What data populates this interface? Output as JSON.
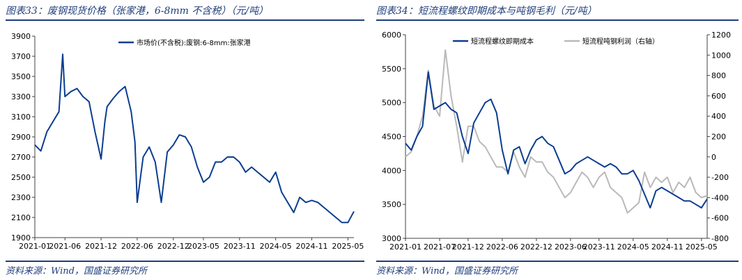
{
  "charts": [
    {
      "title": "图表33：废钢现货价格（张家港，6-8mm 不含税）（元/吨）",
      "source": "资料来源：Wind，国盛证券研究所",
      "legend": [
        {
          "label": "市场价(不含税):废钢:6-8mm:张家港",
          "color": "#0b3d91"
        }
      ],
      "y_ticks": [
        "3900",
        "3700",
        "3500",
        "3300",
        "3100",
        "2900",
        "2700",
        "2500",
        "2300",
        "2100",
        "1900"
      ],
      "x_ticks": [
        "2021-01",
        "2021-06",
        "2021-12",
        "2022-06",
        "2022-12",
        "2023-05",
        "2023-11",
        "2024-05",
        "2024-11",
        "2025-05"
      ]
    },
    {
      "title": "图表34：短流程螺纹即期成本与吨钢毛利（元/吨）",
      "source": "资料来源：Wind，国盛证券研究所",
      "legend": [
        {
          "label": "短流程螺纹即期成本",
          "color": "#0b3d91"
        },
        {
          "label": "短流程吨钢利润（右轴）",
          "color": "#b9b9b9"
        }
      ],
      "y_ticks": [
        "6000",
        "5500",
        "5000",
        "4500",
        "4000",
        "3500",
        "3000"
      ],
      "y2_ticks": [
        "1200",
        "1000",
        "800",
        "600",
        "400",
        "200",
        "0",
        "-200",
        "-400",
        "-600",
        "-800"
      ],
      "x_ticks": [
        "2021-01",
        "2021-07",
        "2021-12",
        "2022-06",
        "2022-12",
        "2023-06",
        "2023-11",
        "2024-05",
        "2024-11",
        "2025-05"
      ]
    }
  ],
  "chart_data": [
    {
      "type": "line",
      "title": "图表33：废钢现货价格（张家港，6-8mm 不含税）（元/吨）",
      "xlabel": "",
      "ylabel": "",
      "ylim": [
        1900,
        3900
      ],
      "x_range": [
        "2021-01",
        "2025-06"
      ],
      "grid": false,
      "legend_position": "top",
      "series": [
        {
          "name": "市场价(不含税):废钢:6-8mm:张家港",
          "color": "#0b3d91",
          "points": [
            [
              "2021-01",
              2820
            ],
            [
              "2021-02",
              2760
            ],
            [
              "2021-03",
              2950
            ],
            [
              "2021-04",
              3050
            ],
            [
              "2021-05",
              3150
            ],
            [
              "2021-05-20",
              3720
            ],
            [
              "2021-06",
              3300
            ],
            [
              "2021-07",
              3350
            ],
            [
              "2021-08",
              3380
            ],
            [
              "2021-09",
              3300
            ],
            [
              "2021-10",
              3250
            ],
            [
              "2021-11",
              2950
            ],
            [
              "2021-12",
              2680
            ],
            [
              "2021-12-20",
              3050
            ],
            [
              "2022-01",
              3200
            ],
            [
              "2022-02",
              3280
            ],
            [
              "2022-03",
              3350
            ],
            [
              "2022-04",
              3400
            ],
            [
              "2022-05",
              3150
            ],
            [
              "2022-05-20",
              2850
            ],
            [
              "2022-06",
              2250
            ],
            [
              "2022-07",
              2700
            ],
            [
              "2022-08",
              2800
            ],
            [
              "2022-09",
              2650
            ],
            [
              "2022-10",
              2250
            ],
            [
              "2022-11",
              2750
            ],
            [
              "2022-12",
              2820
            ],
            [
              "2023-01",
              2920
            ],
            [
              "2023-02",
              2900
            ],
            [
              "2023-03",
              2800
            ],
            [
              "2023-04",
              2600
            ],
            [
              "2023-05",
              2450
            ],
            [
              "2023-06",
              2500
            ],
            [
              "2023-07",
              2650
            ],
            [
              "2023-08",
              2650
            ],
            [
              "2023-09",
              2700
            ],
            [
              "2023-10",
              2700
            ],
            [
              "2023-11",
              2650
            ],
            [
              "2023-12",
              2550
            ],
            [
              "2024-01",
              2600
            ],
            [
              "2024-02",
              2550
            ],
            [
              "2024-03",
              2500
            ],
            [
              "2024-04",
              2450
            ],
            [
              "2024-05",
              2550
            ],
            [
              "2024-06",
              2350
            ],
            [
              "2024-07",
              2250
            ],
            [
              "2024-08",
              2150
            ],
            [
              "2024-09",
              2300
            ],
            [
              "2024-10",
              2250
            ],
            [
              "2024-11",
              2270
            ],
            [
              "2024-12",
              2250
            ],
            [
              "2025-01",
              2200
            ],
            [
              "2025-02",
              2150
            ],
            [
              "2025-03",
              2100
            ],
            [
              "2025-04",
              2050
            ],
            [
              "2025-05",
              2050
            ],
            [
              "2025-06",
              2160
            ]
          ]
        }
      ]
    },
    {
      "type": "line",
      "title": "图表34：短流程螺纹即期成本与吨钢毛利（元/吨）",
      "xlabel": "",
      "ylabel": "",
      "ylim": [
        3000,
        6000
      ],
      "y2lim": [
        -800,
        1200
      ],
      "x_range": [
        "2021-01",
        "2025-06"
      ],
      "grid": false,
      "legend_position": "top",
      "series": [
        {
          "name": "短流程螺纹即期成本",
          "axis": "left",
          "color": "#0b3d91",
          "points": [
            [
              "2021-01",
              4400
            ],
            [
              "2021-02",
              4300
            ],
            [
              "2021-03",
              4500
            ],
            [
              "2021-04",
              4650
            ],
            [
              "2021-05",
              5450
            ],
            [
              "2021-06",
              4900
            ],
            [
              "2021-07",
              4950
            ],
            [
              "2021-08",
              5000
            ],
            [
              "2021-09",
              4900
            ],
            [
              "2021-10",
              4850
            ],
            [
              "2021-11",
              4500
            ],
            [
              "2021-12",
              4250
            ],
            [
              "2022-01",
              4700
            ],
            [
              "2022-02",
              4850
            ],
            [
              "2022-03",
              5000
            ],
            [
              "2022-04",
              5050
            ],
            [
              "2022-05",
              4850
            ],
            [
              "2022-06",
              4300
            ],
            [
              "2022-07",
              3950
            ],
            [
              "2022-08",
              4300
            ],
            [
              "2022-09",
              4350
            ],
            [
              "2022-10",
              4100
            ],
            [
              "2022-11",
              4300
            ],
            [
              "2022-12",
              4450
            ],
            [
              "2023-01",
              4500
            ],
            [
              "2023-02",
              4400
            ],
            [
              "2023-03",
              4350
            ],
            [
              "2023-04",
              4150
            ],
            [
              "2023-05",
              3950
            ],
            [
              "2023-06",
              4000
            ],
            [
              "2023-07",
              4100
            ],
            [
              "2023-08",
              4150
            ],
            [
              "2023-09",
              4200
            ],
            [
              "2023-10",
              4150
            ],
            [
              "2023-11",
              4100
            ],
            [
              "2023-12",
              4050
            ],
            [
              "2024-01",
              4100
            ],
            [
              "2024-02",
              4050
            ],
            [
              "2024-03",
              3950
            ],
            [
              "2024-04",
              3950
            ],
            [
              "2024-05",
              4000
            ],
            [
              "2024-06",
              3850
            ],
            [
              "2024-07",
              3650
            ],
            [
              "2024-08",
              3450
            ],
            [
              "2024-09",
              3700
            ],
            [
              "2024-10",
              3750
            ],
            [
              "2024-11",
              3700
            ],
            [
              "2024-12",
              3650
            ],
            [
              "2025-01",
              3600
            ],
            [
              "2025-02",
              3550
            ],
            [
              "2025-03",
              3550
            ],
            [
              "2025-04",
              3500
            ],
            [
              "2025-05",
              3450
            ],
            [
              "2025-06",
              3580
            ]
          ]
        },
        {
          "name": "短流程吨钢利润（右轴）",
          "axis": "right",
          "color": "#b9b9b9",
          "points": [
            [
              "2021-01",
              0
            ],
            [
              "2021-02",
              50
            ],
            [
              "2021-03",
              200
            ],
            [
              "2021-04",
              400
            ],
            [
              "2021-05",
              850
            ],
            [
              "2021-06",
              500
            ],
            [
              "2021-07",
              400
            ],
            [
              "2021-08",
              1050
            ],
            [
              "2021-09",
              600
            ],
            [
              "2021-10",
              300
            ],
            [
              "2021-11",
              -50
            ],
            [
              "2021-12",
              300
            ],
            [
              "2022-01",
              300
            ],
            [
              "2022-02",
              150
            ],
            [
              "2022-03",
              100
            ],
            [
              "2022-04",
              0
            ],
            [
              "2022-05",
              -100
            ],
            [
              "2022-06",
              -100
            ],
            [
              "2022-07",
              -150
            ],
            [
              "2022-08",
              50
            ],
            [
              "2022-09",
              -100
            ],
            [
              "2022-10",
              -200
            ],
            [
              "2022-11",
              0
            ],
            [
              "2022-12",
              -50
            ],
            [
              "2023-01",
              -50
            ],
            [
              "2023-02",
              -150
            ],
            [
              "2023-03",
              -200
            ],
            [
              "2023-04",
              -300
            ],
            [
              "2023-05",
              -400
            ],
            [
              "2023-06",
              -350
            ],
            [
              "2023-07",
              -250
            ],
            [
              "2023-08",
              -150
            ],
            [
              "2023-09",
              -200
            ],
            [
              "2023-10",
              -300
            ],
            [
              "2023-11",
              -200
            ],
            [
              "2023-12",
              -150
            ],
            [
              "2024-01",
              -300
            ],
            [
              "2024-02",
              -350
            ],
            [
              "2024-03",
              -400
            ],
            [
              "2024-04",
              -550
            ],
            [
              "2024-05",
              -500
            ],
            [
              "2024-06",
              -450
            ],
            [
              "2024-07",
              -150
            ],
            [
              "2024-08",
              -300
            ],
            [
              "2024-09",
              -200
            ],
            [
              "2024-10",
              -250
            ],
            [
              "2024-11",
              -200
            ],
            [
              "2024-12",
              -350
            ],
            [
              "2025-01",
              -250
            ],
            [
              "2025-02",
              -300
            ],
            [
              "2025-03",
              -200
            ],
            [
              "2025-04",
              -350
            ],
            [
              "2025-05",
              -400
            ],
            [
              "2025-06",
              -380
            ]
          ]
        }
      ]
    }
  ]
}
